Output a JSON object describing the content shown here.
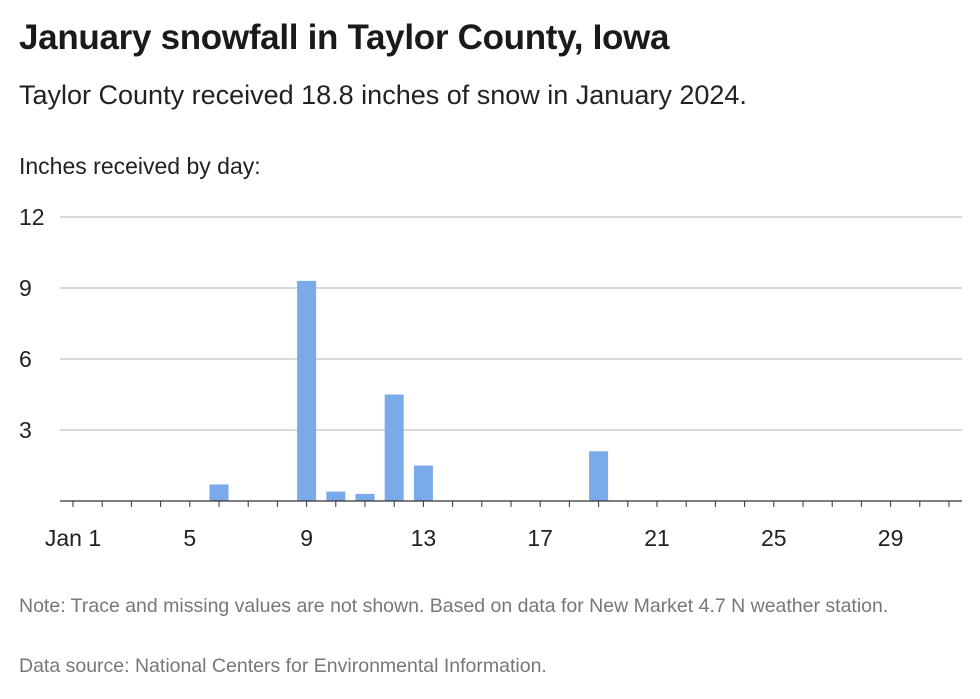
{
  "header": {
    "title": "January snowfall in Taylor County, Iowa",
    "subtitle": "Taylor County received 18.8 inches of snow in January 2024."
  },
  "footer": {
    "note": "Note: Trace and missing values are not shown. Based on data for New Market 4.7 N weather station.",
    "source": "Data source: National Centers for Environmental Information."
  },
  "colors": {
    "bar": "#7aaaea",
    "grid": "#b3b3b3",
    "axis": "#333333"
  },
  "chart_data": {
    "type": "bar",
    "title": "January snowfall in Taylor County, Iowa",
    "subtitle": "Taylor County received 18.8 inches of snow in January 2024.",
    "ylabel": "Inches received by day:",
    "xlabel": "",
    "ylim": [
      0,
      12
    ],
    "yticks": [
      3,
      6,
      9,
      12
    ],
    "xlim": [
      1,
      31
    ],
    "xticks": [
      {
        "day": 1,
        "label": "Jan 1"
      },
      {
        "day": 5,
        "label": "5"
      },
      {
        "day": 9,
        "label": "9"
      },
      {
        "day": 13,
        "label": "13"
      },
      {
        "day": 17,
        "label": "17"
      },
      {
        "day": 21,
        "label": "21"
      },
      {
        "day": 25,
        "label": "25"
      },
      {
        "day": 29,
        "label": "29"
      }
    ],
    "grid": true,
    "legend": "none",
    "series": [
      {
        "days": [
          6,
          9,
          10,
          11,
          12,
          13,
          19
        ],
        "values": [
          0.7,
          9.3,
          0.4,
          0.3,
          4.5,
          1.5,
          2.1
        ]
      }
    ]
  }
}
